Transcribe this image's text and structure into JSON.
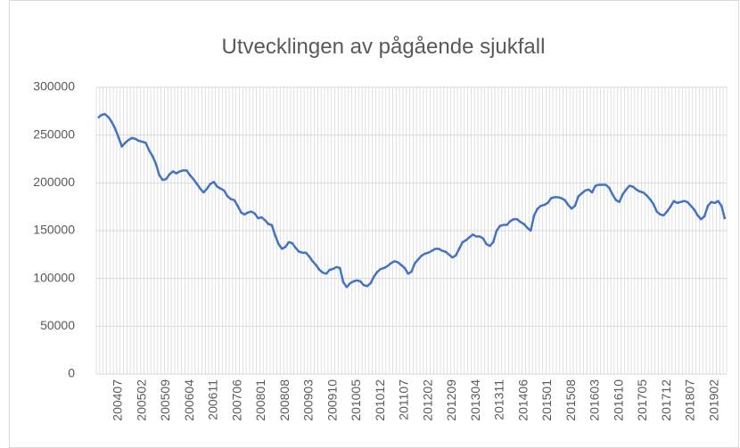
{
  "chart_data": {
    "type": "line",
    "title": "Utvecklingen av pågående sjukfall",
    "categories": [
      null,
      null,
      null,
      null,
      null,
      null,
      "200407",
      null,
      null,
      null,
      null,
      null,
      null,
      "200502",
      null,
      null,
      null,
      null,
      null,
      null,
      "200509",
      null,
      null,
      null,
      null,
      null,
      null,
      "200604",
      null,
      null,
      null,
      null,
      null,
      null,
      "200611",
      null,
      null,
      null,
      null,
      null,
      null,
      "200706",
      null,
      null,
      null,
      null,
      null,
      null,
      "200801",
      null,
      null,
      null,
      null,
      null,
      null,
      "200808",
      null,
      null,
      null,
      null,
      null,
      null,
      "200903",
      null,
      null,
      null,
      null,
      null,
      null,
      "200910",
      null,
      null,
      null,
      null,
      null,
      null,
      "201005",
      null,
      null,
      null,
      null,
      null,
      null,
      "201012",
      null,
      null,
      null,
      null,
      null,
      null,
      "201107",
      null,
      null,
      null,
      null,
      null,
      null,
      "201202",
      null,
      null,
      null,
      null,
      null,
      null,
      "201209",
      null,
      null,
      null,
      null,
      null,
      null,
      "201304",
      null,
      null,
      null,
      null,
      null,
      null,
      "201311",
      null,
      null,
      null,
      null,
      null,
      null,
      "201406",
      null,
      null,
      null,
      null,
      null,
      null,
      "201501",
      null,
      null,
      null,
      null,
      null,
      null,
      "201508",
      null,
      null,
      null,
      null,
      null,
      null,
      "201603",
      null,
      null,
      null,
      null,
      null,
      null,
      "201610",
      null,
      null,
      null,
      null,
      null,
      null,
      "201705",
      null,
      null,
      null,
      null,
      null,
      null,
      "201712",
      null,
      null,
      null,
      null,
      null,
      null,
      "201807",
      null,
      null,
      null,
      null,
      null,
      null,
      "201902",
      null,
      null,
      null
    ],
    "values": [
      268000,
      271000,
      272000,
      269000,
      264000,
      257000,
      248000,
      238000,
      242000,
      245000,
      247000,
      246000,
      244000,
      243000,
      242000,
      234000,
      228000,
      220000,
      208000,
      203000,
      204000,
      209000,
      212000,
      210000,
      212000,
      213000,
      213000,
      208000,
      204000,
      199000,
      194000,
      190000,
      194000,
      199000,
      201000,
      196000,
      194000,
      192000,
      186000,
      183000,
      182000,
      176000,
      169000,
      167000,
      169000,
      170000,
      168000,
      163000,
      164000,
      161000,
      157000,
      156000,
      145000,
      136000,
      131000,
      133000,
      138000,
      137000,
      132000,
      128000,
      127000,
      127000,
      123000,
      118000,
      114000,
      109000,
      106000,
      105000,
      109000,
      110000,
      112000,
      111000,
      96000,
      91000,
      95000,
      97000,
      98000,
      97000,
      93000,
      92000,
      95000,
      102000,
      107000,
      110000,
      111000,
      113000,
      116000,
      118000,
      117000,
      114000,
      111000,
      105000,
      107000,
      116000,
      120000,
      124000,
      126000,
      127000,
      129000,
      131000,
      131000,
      129000,
      128000,
      125000,
      122000,
      124000,
      131000,
      138000,
      140000,
      143000,
      146000,
      144000,
      144000,
      142000,
      136000,
      134000,
      138000,
      150000,
      155000,
      156000,
      156000,
      160000,
      162000,
      162000,
      159000,
      157000,
      153000,
      150000,
      166000,
      173000,
      176000,
      177000,
      179000,
      184000,
      185000,
      185000,
      184000,
      182000,
      177000,
      173000,
      176000,
      186000,
      189000,
      192000,
      193000,
      190000,
      197000,
      198000,
      198000,
      198000,
      195000,
      188000,
      182000,
      180000,
      188000,
      193000,
      197000,
      196000,
      193000,
      191000,
      190000,
      187000,
      183000,
      178000,
      170000,
      167000,
      166000,
      170000,
      175000,
      181000,
      179000,
      180000,
      181000,
      180000,
      176000,
      172000,
      166000,
      162000,
      165000,
      176000,
      180000,
      179000,
      181000,
      176000,
      162000
    ],
    "color": "#4472c4",
    "ylim": [
      0,
      300000
    ],
    "yticks": [
      0,
      50000,
      100000,
      150000,
      200000,
      250000,
      300000
    ],
    "grid": true
  }
}
